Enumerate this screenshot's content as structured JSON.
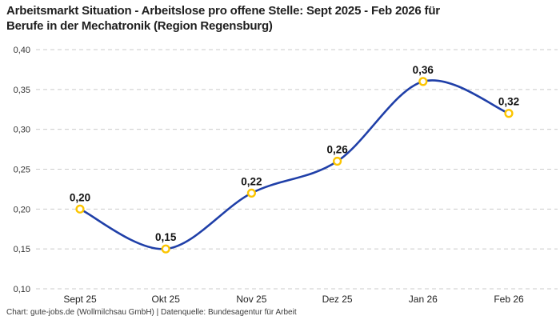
{
  "title": {
    "line1": "Arbeitsmarkt Situation - Arbeitslose pro offene Stelle: Sept 2025 - Feb 2026 für",
    "line2": "Berufe in der Mechatronik (Region Regensburg)"
  },
  "footer": "Chart: gute-jobs.de (Wollmilchsau GmbH) | Datenquelle: Bundesagentur für Arbeit",
  "chart_data": {
    "type": "line",
    "title": "Arbeitsmarkt Situation - Arbeitslose pro offene Stelle: Sept 2025 - Feb 2026 für Berufe in der Mechatronik (Region Regensburg)",
    "categories": [
      "Sept 25",
      "Okt 25",
      "Nov 25",
      "Dez 25",
      "Jan 26",
      "Feb 26"
    ],
    "values": [
      0.2,
      0.15,
      0.22,
      0.26,
      0.36,
      0.32
    ],
    "value_labels": [
      "0,20",
      "0,15",
      "0,22",
      "0,26",
      "0,36",
      "0,32"
    ],
    "xlabel": "",
    "ylabel": "",
    "ylim": [
      0.1,
      0.4
    ],
    "y_ticks": [
      0.4,
      0.35,
      0.3,
      0.25,
      0.2,
      0.15,
      0.1
    ],
    "y_tick_labels": [
      "0,40",
      "0,35",
      "0,30",
      "0,25",
      "0,20",
      "0,15",
      "0,10"
    ],
    "grid": "horizontal-dashed",
    "legend": "none",
    "smooth": true,
    "colors": {
      "line": "#1f3fa8",
      "marker_ring": "#fcc500",
      "marker_fill": "#ffffff",
      "grid": "#cbcbcb",
      "title": "#1f1f1f",
      "y_tick": "#333333",
      "x_tick": "#222222",
      "value_label": "#111111",
      "footer": "#3a3a3a",
      "background": "#ffffff"
    }
  }
}
